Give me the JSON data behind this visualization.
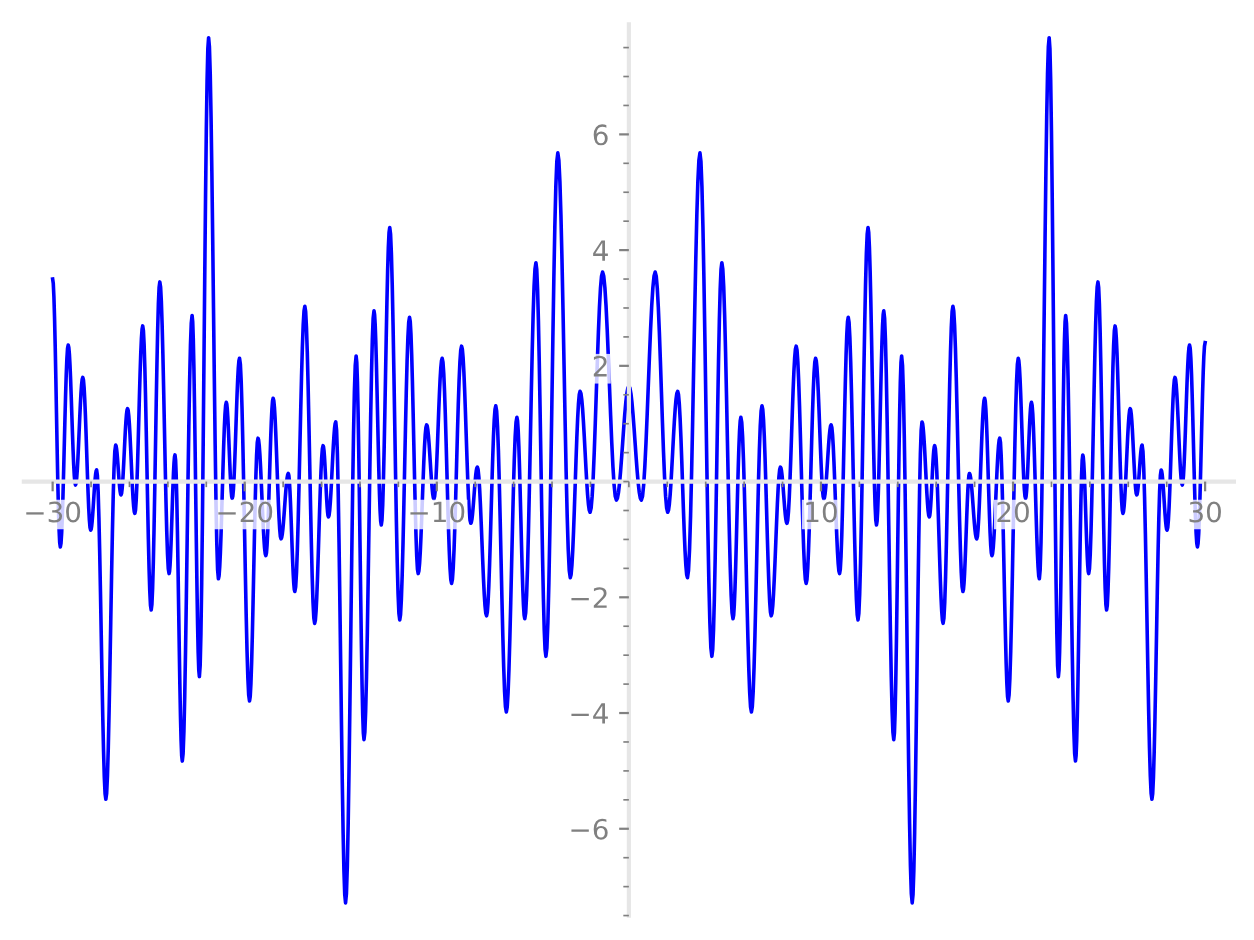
{
  "chart_data": {
    "type": "line",
    "x": [
      -30,
      -29.6,
      -29.19,
      -28.81,
      -28.43,
      -28.02,
      -27.71,
      -27.23,
      -26.72,
      -26.44,
      -26.1,
      -25.72,
      -25.31,
      -24.87,
      -24.42,
      -23.94,
      -23.63,
      -23.25,
      -22.74,
      -22.36,
      -21.88,
      -21.37,
      -20.96,
      -20.65,
      -20.27,
      -19.75,
      -19.31,
      -18.9,
      -18.52,
      -18.11,
      -17.73,
      -17.39,
      -16.87,
      -16.36,
      -15.92,
      -15.64,
      -15.26,
      -14.75,
      -14.2,
      -13.79,
      -13.27,
      -12.89,
      -12.45,
      -11.93,
      -11.42,
      -10.97,
      -10.53,
      -10.15,
      -9.72,
      -9.23,
      -8.71,
      -8.23,
      -7.89,
      -7.41,
      -6.93,
      -6.38,
      -5.83,
      -5.42,
      -4.84,
      -4.32,
      -3.7,
      -3.05,
      -2.54,
      -2.02,
      -1.37,
      -0.65,
      0,
      0.65,
      1.37,
      2.02,
      2.54,
      3.05,
      3.7,
      4.32,
      4.84,
      5.42,
      5.83,
      6.38,
      6.93,
      7.41,
      7.89,
      8.23,
      8.71,
      9.23,
      9.72,
      10.15,
      10.53,
      10.97,
      11.42,
      11.93,
      12.45,
      12.89,
      13.27,
      13.79,
      14.2,
      14.75,
      15.26,
      15.64,
      15.92,
      16.36,
      16.87,
      17.39,
      17.73,
      18.11,
      18.52,
      18.9,
      19.31,
      19.75,
      20.27,
      20.65,
      20.96,
      21.37,
      21.88,
      22.36,
      22.74,
      23.25,
      23.63,
      23.94,
      24.42,
      24.87,
      25.31,
      25.72,
      26.1,
      26.44,
      26.72,
      27.23,
      27.71,
      28.02,
      28.43,
      28.81,
      29.19,
      29.6,
      30
    ],
    "series": [
      {
        "color": "#0000ff",
        "values": [
          3.5,
          -1.13,
          2.36,
          -0.06,
          1.8,
          -0.84,
          0.2,
          -5.49,
          0.63,
          -0.23,
          1.26,
          -0.55,
          2.69,
          -2.22,
          3.45,
          -1.59,
          0.46,
          -4.83,
          2.87,
          -3.37,
          7.67,
          -1.68,
          1.37,
          -0.29,
          2.13,
          -3.79,
          0.75,
          -1.28,
          1.44,
          -0.99,
          0.14,
          -1.9,
          3.03,
          -2.45,
          0.62,
          -0.61,
          1.03,
          -7.28,
          2.17,
          -4.46,
          2.95,
          -0.75,
          4.39,
          -2.39,
          2.84,
          -1.59,
          0.98,
          -0.3,
          2.13,
          -1.76,
          2.34,
          -0.72,
          0.25,
          -2.32,
          1.31,
          -3.98,
          1.11,
          -2.37,
          3.78,
          -3.02,
          5.68,
          -1.66,
          1.56,
          -0.53,
          3.62,
          -0.32,
          1.65,
          -0.32,
          3.62,
          -0.53,
          1.56,
          -1.66,
          5.68,
          -3.02,
          3.78,
          -2.37,
          1.11,
          -3.98,
          1.31,
          -2.32,
          0.25,
          -0.72,
          2.34,
          -1.76,
          2.13,
          -0.3,
          0.98,
          -1.59,
          2.84,
          -2.39,
          4.39,
          -0.75,
          2.95,
          -4.46,
          2.17,
          -7.28,
          1.03,
          -0.61,
          0.62,
          -2.45,
          3.03,
          -1.9,
          0.14,
          -0.99,
          1.44,
          -1.28,
          0.75,
          -3.79,
          2.13,
          -0.29,
          1.37,
          -1.68,
          7.67,
          -3.37,
          2.87,
          -4.83,
          0.46,
          -1.59,
          3.45,
          -2.22,
          2.69,
          -0.55,
          1.26,
          -0.23,
          0.63,
          -5.49,
          0.2,
          -0.84,
          1.8,
          -0.06,
          2.36,
          -1.13,
          2.4
        ]
      }
    ],
    "xlim": [
      -31.5,
      31.5
    ],
    "ylim": [
      -7.5,
      7.9
    ],
    "xticks": [
      {
        "value": -30,
        "label": "−30"
      },
      {
        "value": -20,
        "label": "−20"
      },
      {
        "value": -10,
        "label": "−10"
      },
      10,
      20,
      30
    ],
    "yticks": [
      {
        "value": -6,
        "label": "−6"
      },
      {
        "value": -4,
        "label": "−4"
      },
      {
        "value": -2,
        "label": "−2"
      },
      2,
      4,
      6
    ],
    "grid": false,
    "legend": false,
    "marker": "none",
    "line_style": "solid"
  }
}
